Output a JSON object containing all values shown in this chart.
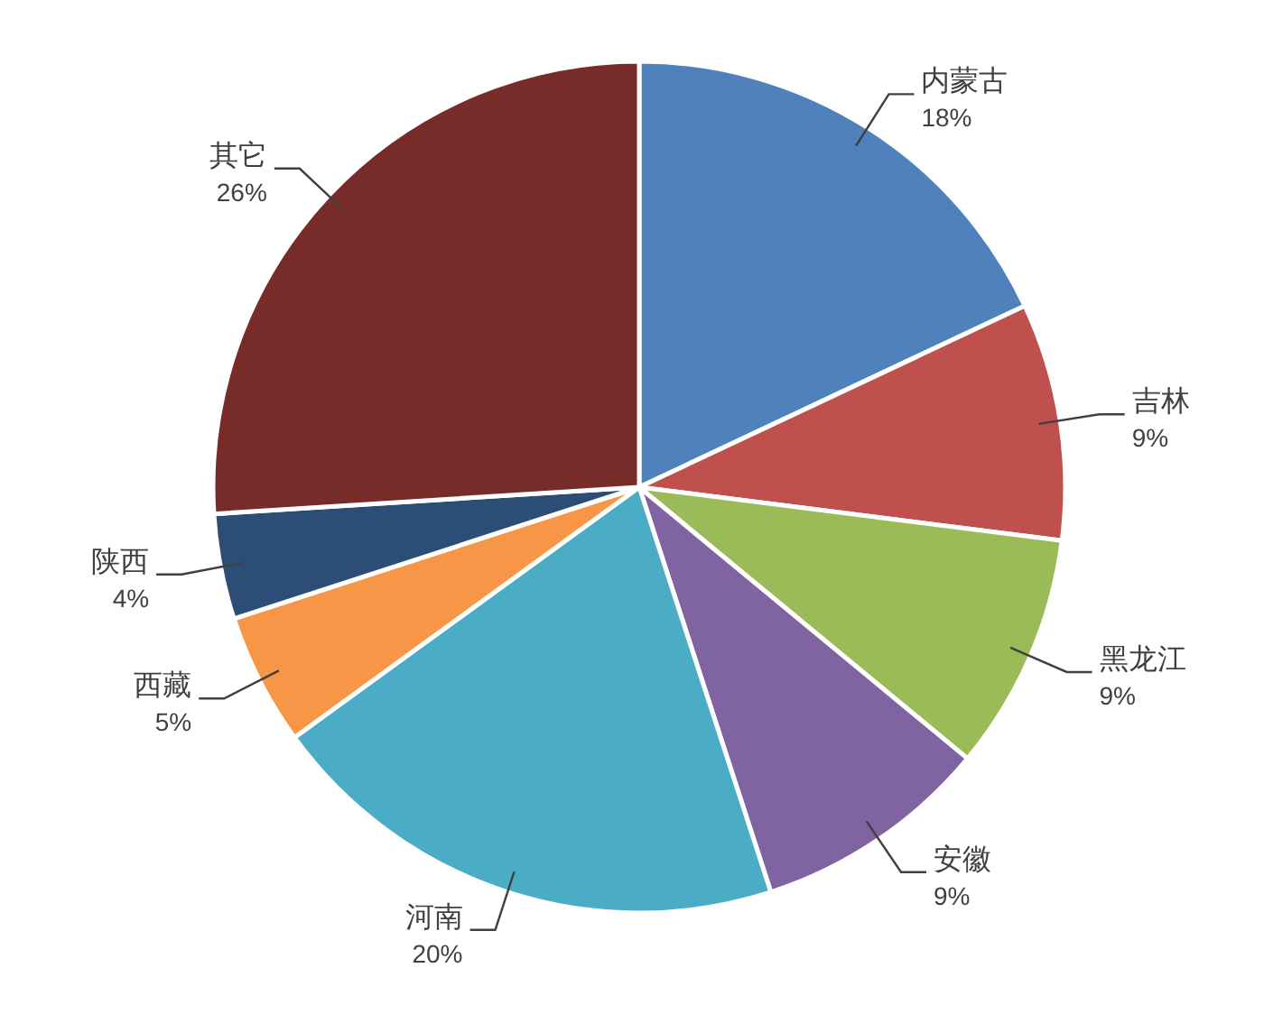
{
  "chart_data": {
    "type": "pie",
    "categories": [
      "内蒙古",
      "吉林",
      "黑龙江",
      "安徽",
      "河南",
      "西藏",
      "陕西",
      "其它"
    ],
    "values": [
      18,
      9,
      9,
      9,
      20,
      5,
      4,
      26
    ],
    "value_labels": [
      "18%",
      "9%",
      "9%",
      "9%",
      "20%",
      "5%",
      "4%",
      "26%"
    ],
    "colors": [
      "#4f81bd",
      "#c0504d",
      "#9bbb59",
      "#8064a2",
      "#4bacc6",
      "#f79646",
      "#2c4d75",
      "#772c2a"
    ]
  }
}
